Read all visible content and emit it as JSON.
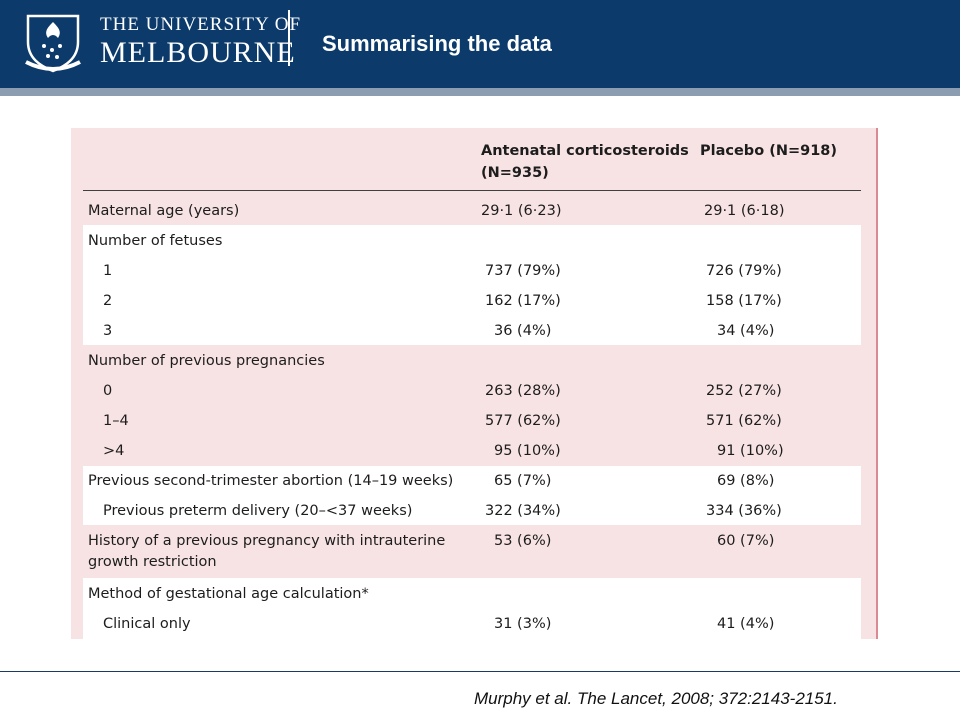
{
  "header": {
    "university_line1": "THE UNIVERSITY OF",
    "university_line2": "MELBOURNE",
    "slide_title": "Summarising the data"
  },
  "table": {
    "columns": [
      "",
      "Antenatal corticosteroids (N=935)",
      "Placebo (N=918)"
    ],
    "column_header_1_line1": "Antenatal corticosteroids",
    "column_header_1_line2": "(N=935)",
    "column_header_2": "Placebo (N=918)",
    "rows": [
      {
        "label": "Maternal age (years)",
        "a": "29·1 (6·23)",
        "b": "29·1 (6·18)"
      },
      {
        "label": "Number of fetuses",
        "a": "",
        "b": ""
      },
      {
        "label": "1",
        "a": "737 (79%)",
        "b": "726 (79%)"
      },
      {
        "label": "2",
        "a": "162 (17%)",
        "b": "158 (17%)"
      },
      {
        "label": "3",
        "a": "36 (4%)",
        "b": "34 (4%)"
      },
      {
        "label": "Number of previous pregnancies",
        "a": "",
        "b": ""
      },
      {
        "label": "0",
        "a": "263 (28%)",
        "b": "252 (27%)"
      },
      {
        "label": "1–4",
        "a": "577 (62%)",
        "b": "571 (62%)"
      },
      {
        "label": ">4",
        "a": "95 (10%)",
        "b": "91 (10%)"
      },
      {
        "label": "Previous second-trimester abortion (14–19 weeks)",
        "a": "65 (7%)",
        "b": "69 (8%)"
      },
      {
        "label": "Previous preterm delivery (20–<37 weeks)",
        "a": "322 (34%)",
        "b": "334 (36%)"
      },
      {
        "label_line1": "History of a previous pregnancy with intrauterine",
        "label_line2": "growth restriction",
        "a": "53 (6%)",
        "b": "60 (7%)"
      },
      {
        "label": "Method of gestational age calculation*",
        "a": "",
        "b": ""
      },
      {
        "label": "Clinical only",
        "a": "31 (3%)",
        "b": "41 (4%)"
      }
    ]
  },
  "footer": {
    "citation": "Murphy et al. The Lancet, 2008; 372:2143-2151."
  }
}
